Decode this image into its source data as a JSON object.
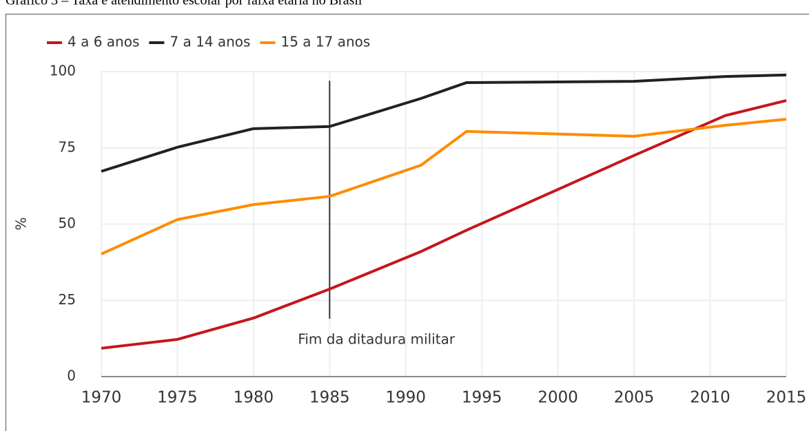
{
  "chart_data": {
    "type": "line",
    "title": "Gráfico 3 – Taxa e atendimento escolar por faixa etária no Brasil",
    "ylabel": "%",
    "x": [
      1970,
      1975,
      1980,
      1985,
      1991,
      1994,
      2005,
      2011,
      2015
    ],
    "series": [
      {
        "name": "4 a 6 anos",
        "color": "#c4161c",
        "values": [
          9.3,
          12.2,
          19.2,
          28.7,
          41,
          48,
          72.5,
          85.6,
          90.5
        ]
      },
      {
        "name": "7 a 14 anos",
        "color": "#222222",
        "values": [
          67.3,
          75.2,
          81.3,
          82,
          91.2,
          96.4,
          96.8,
          98.4,
          98.9
        ]
      },
      {
        "name": "15 a 17 anos",
        "color": "#ff8c00",
        "values": [
          40.2,
          51.5,
          56.4,
          59.1,
          69.3,
          80.4,
          78.8,
          82.4,
          84.4
        ]
      }
    ],
    "annotation": {
      "text": "Fim da ditadura militar",
      "x": 1985,
      "y_range": [
        19,
        97
      ]
    },
    "xlim": [
      1970,
      2015
    ],
    "xticks": [
      1970,
      1975,
      1980,
      1985,
      1990,
      1995,
      2000,
      2005,
      2010,
      2015
    ],
    "ylim": [
      0,
      100
    ],
    "yticks": [
      0,
      25,
      50,
      75,
      100
    ],
    "grid": true,
    "legend": "top-left"
  }
}
